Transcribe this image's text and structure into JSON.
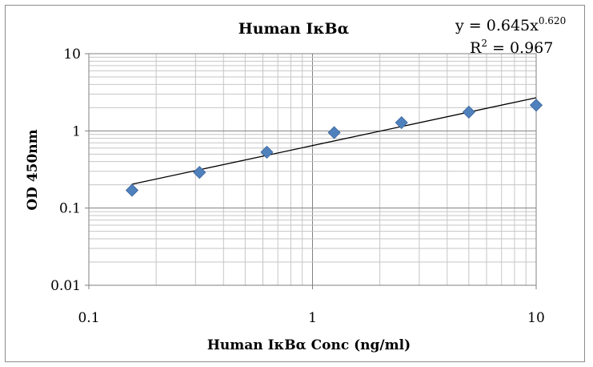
{
  "chart_data": {
    "type": "scatter",
    "title": "Human IκBα",
    "xlabel": "Human IκBα Conc (ng/ml)",
    "ylabel": "OD 450nm",
    "x_scale": "log",
    "y_scale": "log",
    "xlim": [
      0.1,
      10
    ],
    "ylim": [
      0.01,
      10
    ],
    "x_ticks": [
      "0.1",
      "1",
      "10"
    ],
    "y_ticks": [
      "0.01",
      "0.1",
      "1",
      "10"
    ],
    "grid": true,
    "legend": "none",
    "marker": "diamond",
    "series_color": "#4f81bd",
    "x": [
      0.156,
      0.3125,
      0.625,
      1.25,
      2.5,
      5,
      10
    ],
    "y": [
      0.17,
      0.29,
      0.53,
      0.95,
      1.28,
      1.75,
      2.15
    ],
    "trendline": {
      "type": "power",
      "a": 0.645,
      "b": 0.62,
      "equation_text": "y = 0.645x",
      "exponent_text": "0.620",
      "r2_prefix": "R",
      "r2_power": "2",
      "r2_value": " = 0.967"
    }
  }
}
